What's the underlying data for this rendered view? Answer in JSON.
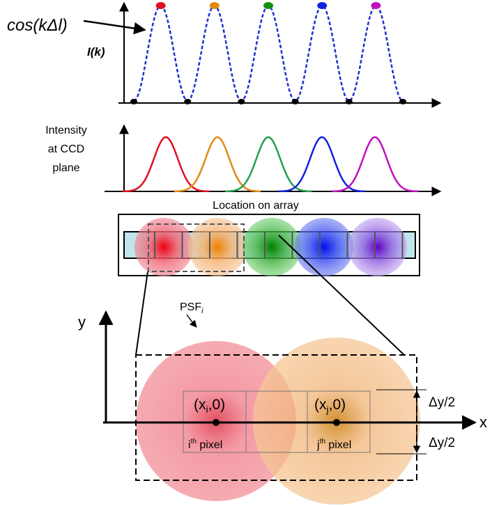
{
  "top_plot": {
    "curve_label": "cos(kΔl)",
    "y_axis_label": "I(k)"
  },
  "middle_plot": {
    "y_axis_label": [
      "Intensity",
      "at CCD",
      "plane"
    ],
    "x_axis_label": "Location on array"
  },
  "zoom": {
    "psf_label": {
      "base": "PSF",
      "sub": "i"
    },
    "y_axis_label": "y",
    "x_axis_label": "x",
    "points": [
      {
        "open": "(x",
        "sub": "i",
        "close": ",0)"
      },
      {
        "open": "(x",
        "sub": "j",
        "close": ",0)"
      }
    ],
    "pixel_labels": [
      {
        "base": "i",
        "sup": "th",
        "rest": " pixel"
      },
      {
        "base": "j",
        "sup": "th",
        "rest": " pixel"
      }
    ],
    "half_heights": [
      "Δy/2",
      "Δy/2"
    ]
  }
}
